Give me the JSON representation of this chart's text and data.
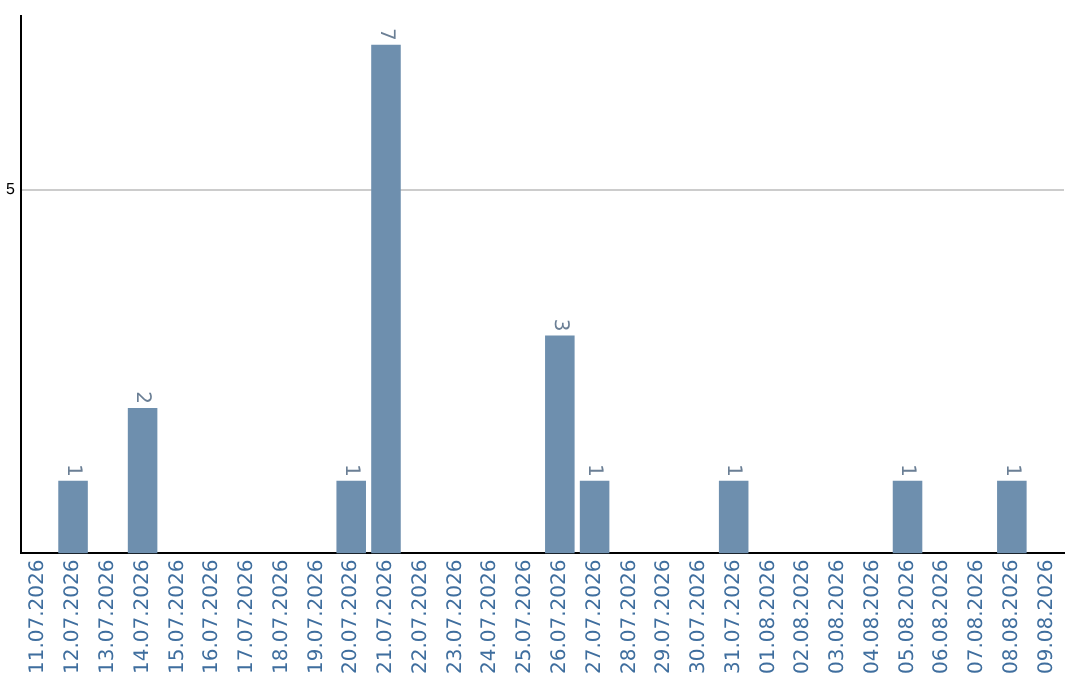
{
  "chart_data": {
    "type": "bar",
    "categories": [
      "11.07.2026",
      "12.07.2026",
      "13.07.2026",
      "14.07.2026",
      "15.07.2026",
      "16.07.2026",
      "17.07.2026",
      "18.07.2026",
      "19.07.2026",
      "20.07.2026",
      "21.07.2026",
      "22.07.2026",
      "23.07.2026",
      "24.07.2026",
      "25.07.2026",
      "26.07.2026",
      "27.07.2026",
      "28.07.2026",
      "29.07.2026",
      "30.07.2026",
      "31.07.2026",
      "01.08.2026",
      "02.08.2026",
      "03.08.2026",
      "04.08.2026",
      "05.08.2026",
      "06.08.2026",
      "07.08.2026",
      "08.08.2026",
      "09.08.2026"
    ],
    "values": [
      0,
      1,
      0,
      2,
      0,
      0,
      0,
      0,
      0,
      1,
      7,
      0,
      0,
      0,
      0,
      3,
      1,
      0,
      0,
      0,
      1,
      0,
      0,
      0,
      0,
      1,
      0,
      0,
      1,
      0
    ],
    "value_labels": [
      null,
      "1",
      null,
      "2",
      null,
      null,
      null,
      null,
      null,
      "1",
      "7",
      null,
      null,
      null,
      null,
      "3",
      "1",
      null,
      null,
      null,
      "1",
      null,
      null,
      null,
      null,
      "1",
      null,
      null,
      "1",
      null
    ],
    "color": "#6e8fae",
    "ylim": [
      0,
      7.4
    ],
    "yticks": [
      5
    ],
    "grid": "y"
  }
}
